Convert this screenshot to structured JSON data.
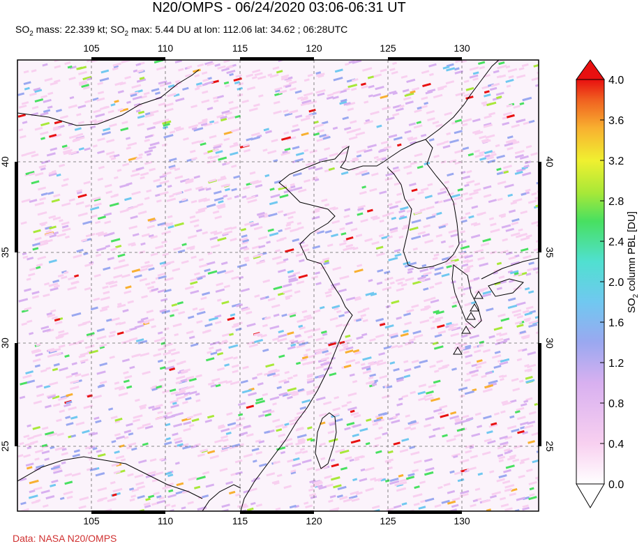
{
  "header": {
    "title": "N20/OMPS - 06/24/2020 03:06-06:31 UT",
    "subtitle_parts": [
      "SO",
      "2",
      " mass: 22.339 kt; SO",
      "2",
      " max: 5.44 DU at lon: 112.06 lat: 34.62 ; 06:28UTC"
    ]
  },
  "map": {
    "lon_ticks": [
      "105",
      "110",
      "115",
      "120",
      "125",
      "130"
    ],
    "lat_ticks": [
      "40",
      "35",
      "30",
      "25"
    ],
    "lon_range": [
      100,
      135
    ],
    "lat_range": [
      20.5,
      45
    ]
  },
  "colorbar": {
    "ticks": [
      "4.0",
      "3.6",
      "3.2",
      "2.8",
      "2.4",
      "2.0",
      "1.6",
      "1.2",
      "0.8",
      "0.4",
      "0.0"
    ],
    "label_prefix": "SO",
    "label_sub": "2",
    "label_suffix": " column PBL [DU]",
    "colors": [
      "#ffffff",
      "#f8d0f0",
      "#d8b0f0",
      "#9aa8f0",
      "#70c8f0",
      "#50e0d0",
      "#48e060",
      "#a8e838",
      "#f0f030",
      "#f8b030",
      "#f06020",
      "#e81010"
    ]
  },
  "source": "Data: NASA N20/OMPS",
  "volcano_marker_color": "#000000"
}
